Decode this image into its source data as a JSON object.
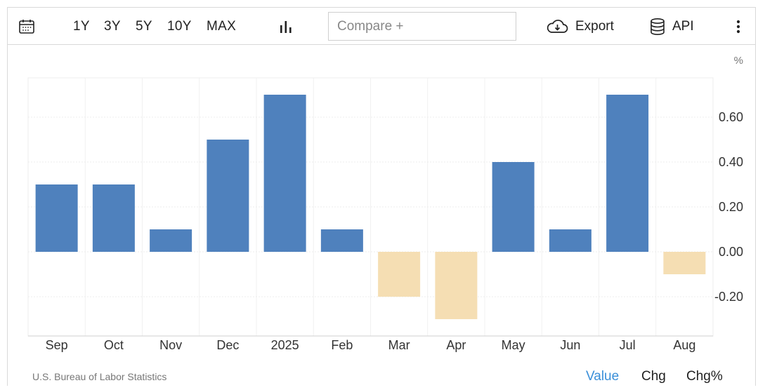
{
  "toolbar": {
    "calendar_icon": "calendar-icon",
    "ranges": [
      "1Y",
      "3Y",
      "5Y",
      "10Y",
      "MAX"
    ],
    "chart_type_icon": "bar-chart-icon",
    "compare_placeholder": "Compare +",
    "export_label": "Export",
    "export_icon": "cloud-download-icon",
    "api_label": "API",
    "api_icon": "database-icon",
    "more_icon": "more-vertical-icon"
  },
  "chart_data": {
    "type": "bar",
    "unit": "%",
    "categories": [
      "Sep",
      "Oct",
      "Nov",
      "Dec",
      "2025",
      "Feb",
      "Mar",
      "Apr",
      "May",
      "Jun",
      "Jul",
      "Aug"
    ],
    "values": [
      0.3,
      0.3,
      0.1,
      0.5,
      0.7,
      0.1,
      -0.2,
      -0.3,
      0.4,
      0.1,
      0.7,
      -0.1
    ],
    "yticks": [
      0.6,
      0.4,
      0.2,
      0.0,
      -0.2
    ],
    "ytick_labels": [
      "0.60",
      "0.40",
      "0.20",
      "0.00",
      "-0.20"
    ],
    "ylim": [
      -0.37,
      0.78
    ],
    "positive_color": "#4f81bd",
    "negative_color": "#f5deb3",
    "grid": true,
    "axis_side": "right"
  },
  "footer": {
    "source": "U.S. Bureau of Labor Statistics",
    "views": [
      "Value",
      "Chg",
      "Chg%"
    ],
    "active_view": "Value",
    "active_color": "#3a8fd9"
  }
}
